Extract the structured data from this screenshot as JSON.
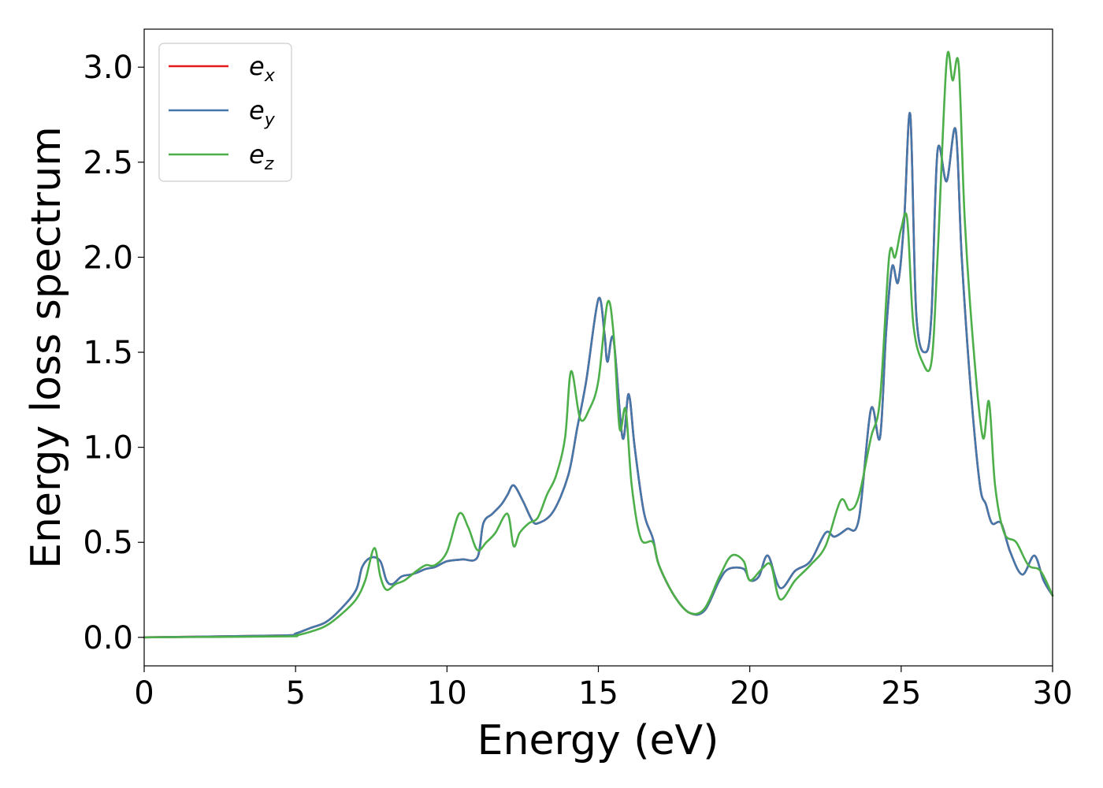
{
  "chart_data": {
    "type": "line",
    "title": "",
    "xlabel": "Energy (eV)",
    "ylabel": "Energy loss spectrum",
    "xlim": [
      0,
      30
    ],
    "ylim": [
      -0.15,
      3.2
    ],
    "xticks": [
      0,
      5,
      10,
      15,
      20,
      25,
      30
    ],
    "yticks": [
      0.0,
      0.5,
      1.0,
      1.5,
      2.0,
      2.5,
      3.0
    ],
    "xtick_labels": [
      "0",
      "5",
      "10",
      "15",
      "20",
      "25",
      "30"
    ],
    "ytick_labels": [
      "0.0",
      "0.5",
      "1.0",
      "1.5",
      "2.0",
      "2.5",
      "3.0"
    ],
    "grid": false,
    "legend_position": "top-left",
    "series": [
      {
        "name": "e",
        "subscript": "x",
        "color": "#e41a1c",
        "x": [
          0,
          4.6,
          5.0,
          5.5,
          6.0,
          6.5,
          7.0,
          7.2,
          7.5,
          7.8,
          8.0,
          8.2,
          8.5,
          8.8,
          9.0,
          9.3,
          9.6,
          10.0,
          10.5,
          11.0,
          11.2,
          11.5,
          11.8,
          12.0,
          12.2,
          12.5,
          12.8,
          13.0,
          13.5,
          14.0,
          14.3,
          14.6,
          15.0,
          15.2,
          15.3,
          15.5,
          15.8,
          16.0,
          16.2,
          16.5,
          16.8,
          17.0,
          17.5,
          18.0,
          18.5,
          19.0,
          19.3,
          19.8,
          20.0,
          20.3,
          20.6,
          21.0,
          21.5,
          22.0,
          22.5,
          22.8,
          23.2,
          23.6,
          24.0,
          24.3,
          24.5,
          24.7,
          24.9,
          25.1,
          25.3,
          25.5,
          25.8,
          26.0,
          26.2,
          26.5,
          26.8,
          27.0,
          27.3,
          27.6,
          27.8,
          28.0,
          28.3,
          28.6,
          29.0,
          29.4,
          29.7,
          30.0
        ],
        "y": [
          0,
          0.01,
          0.02,
          0.05,
          0.08,
          0.15,
          0.25,
          0.37,
          0.42,
          0.4,
          0.3,
          0.28,
          0.32,
          0.33,
          0.34,
          0.36,
          0.37,
          0.4,
          0.41,
          0.42,
          0.6,
          0.65,
          0.7,
          0.75,
          0.8,
          0.72,
          0.62,
          0.6,
          0.66,
          0.85,
          1.1,
          1.35,
          1.78,
          1.6,
          1.45,
          1.57,
          1.05,
          1.28,
          1.0,
          0.66,
          0.52,
          0.38,
          0.22,
          0.13,
          0.14,
          0.3,
          0.36,
          0.36,
          0.3,
          0.32,
          0.43,
          0.26,
          0.35,
          0.4,
          0.55,
          0.53,
          0.57,
          0.62,
          1.2,
          1.05,
          1.6,
          1.95,
          1.87,
          2.2,
          2.75,
          1.7,
          1.5,
          1.7,
          2.56,
          2.4,
          2.67,
          2.0,
          1.3,
          0.8,
          0.7,
          0.6,
          0.6,
          0.45,
          0.33,
          0.43,
          0.3,
          0.22
        ]
      },
      {
        "name": "e",
        "subscript": "y",
        "color": "#4477aa",
        "x": [
          0,
          4.6,
          5.0,
          5.5,
          6.0,
          6.5,
          7.0,
          7.2,
          7.5,
          7.8,
          8.0,
          8.2,
          8.5,
          8.8,
          9.0,
          9.3,
          9.6,
          10.0,
          10.5,
          11.0,
          11.2,
          11.5,
          11.8,
          12.0,
          12.2,
          12.5,
          12.8,
          13.0,
          13.5,
          14.0,
          14.3,
          14.6,
          15.0,
          15.2,
          15.3,
          15.5,
          15.8,
          16.0,
          16.2,
          16.5,
          16.8,
          17.0,
          17.5,
          18.0,
          18.5,
          19.0,
          19.3,
          19.8,
          20.0,
          20.3,
          20.6,
          21.0,
          21.5,
          22.0,
          22.5,
          22.8,
          23.2,
          23.6,
          24.0,
          24.3,
          24.5,
          24.7,
          24.9,
          25.1,
          25.3,
          25.5,
          25.8,
          26.0,
          26.2,
          26.5,
          26.8,
          27.0,
          27.3,
          27.6,
          27.8,
          28.0,
          28.3,
          28.6,
          29.0,
          29.4,
          29.7,
          30.0
        ],
        "y": [
          0,
          0.01,
          0.02,
          0.05,
          0.08,
          0.15,
          0.25,
          0.37,
          0.42,
          0.4,
          0.3,
          0.28,
          0.32,
          0.33,
          0.34,
          0.36,
          0.37,
          0.4,
          0.41,
          0.42,
          0.6,
          0.65,
          0.7,
          0.75,
          0.8,
          0.72,
          0.62,
          0.6,
          0.66,
          0.85,
          1.1,
          1.35,
          1.78,
          1.6,
          1.45,
          1.57,
          1.05,
          1.28,
          1.0,
          0.66,
          0.52,
          0.38,
          0.22,
          0.13,
          0.14,
          0.3,
          0.36,
          0.36,
          0.3,
          0.32,
          0.43,
          0.26,
          0.35,
          0.4,
          0.55,
          0.53,
          0.57,
          0.62,
          1.2,
          1.05,
          1.6,
          1.95,
          1.87,
          2.2,
          2.75,
          1.7,
          1.5,
          1.7,
          2.56,
          2.4,
          2.67,
          2.0,
          1.3,
          0.8,
          0.7,
          0.6,
          0.6,
          0.45,
          0.33,
          0.43,
          0.3,
          0.22
        ]
      },
      {
        "name": "e",
        "subscript": "z",
        "color": "#4daf4a",
        "x": [
          0,
          4.6,
          5.0,
          5.5,
          6.0,
          6.5,
          7.0,
          7.3,
          7.6,
          7.8,
          8.0,
          8.3,
          8.6,
          9.0,
          9.3,
          9.6,
          10.0,
          10.4,
          10.7,
          11.0,
          11.3,
          11.6,
          12.0,
          12.2,
          12.4,
          12.7,
          13.0,
          13.3,
          13.6,
          13.9,
          14.1,
          14.4,
          14.7,
          15.0,
          15.3,
          15.5,
          15.7,
          15.9,
          16.1,
          16.4,
          16.8,
          17.0,
          17.5,
          18.0,
          18.5,
          19.0,
          19.4,
          19.8,
          20.0,
          20.4,
          20.7,
          21.0,
          21.5,
          22.0,
          22.5,
          23.0,
          23.3,
          23.6,
          24.0,
          24.3,
          24.6,
          24.8,
          25.0,
          25.2,
          25.4,
          25.7,
          26.0,
          26.2,
          26.5,
          26.7,
          26.9,
          27.1,
          27.4,
          27.7,
          27.9,
          28.1,
          28.4,
          28.8,
          29.2,
          29.6,
          30.0
        ],
        "y": [
          0,
          0.005,
          0.01,
          0.03,
          0.06,
          0.12,
          0.2,
          0.3,
          0.47,
          0.32,
          0.25,
          0.28,
          0.3,
          0.35,
          0.38,
          0.38,
          0.45,
          0.65,
          0.58,
          0.46,
          0.5,
          0.55,
          0.65,
          0.48,
          0.55,
          0.6,
          0.63,
          0.75,
          0.85,
          1.05,
          1.4,
          1.15,
          1.2,
          1.35,
          1.76,
          1.6,
          1.1,
          1.2,
          0.8,
          0.52,
          0.5,
          0.38,
          0.22,
          0.13,
          0.15,
          0.32,
          0.43,
          0.4,
          0.3,
          0.36,
          0.38,
          0.2,
          0.3,
          0.38,
          0.48,
          0.72,
          0.67,
          0.74,
          1.05,
          1.25,
          2.0,
          2.0,
          2.15,
          2.2,
          1.65,
          1.45,
          1.45,
          2.0,
          3.03,
          2.93,
          3.01,
          2.2,
          1.5,
          1.05,
          1.24,
          0.8,
          0.55,
          0.5,
          0.38,
          0.35,
          0.22
        ]
      }
    ]
  }
}
